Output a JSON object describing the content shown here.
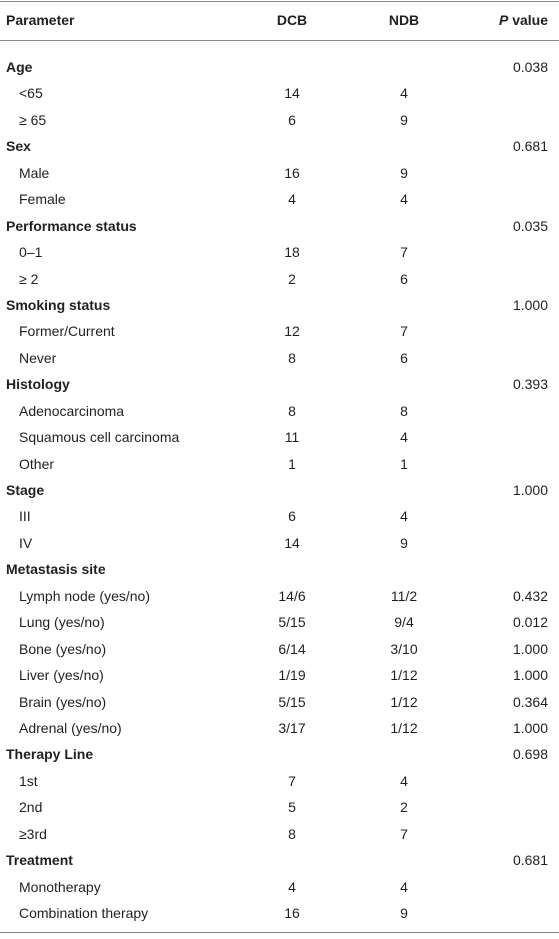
{
  "table": {
    "header": {
      "parameter": "Parameter",
      "dcb": "DCB",
      "ndb": "NDB",
      "p_italic": "P",
      "p_rest": "value"
    },
    "groups": [
      {
        "label": "Age",
        "p": "0.038",
        "rows": [
          {
            "label": "<65",
            "dcb": "14",
            "ndb": "4"
          },
          {
            "label": "≥ 65",
            "dcb": "6",
            "ndb": "9"
          }
        ]
      },
      {
        "label": "Sex",
        "p": "0.681",
        "rows": [
          {
            "label": "Male",
            "dcb": "16",
            "ndb": "9"
          },
          {
            "label": "Female",
            "dcb": "4",
            "ndb": "4"
          }
        ]
      },
      {
        "label": "Performance status",
        "p": "0.035",
        "rows": [
          {
            "label": "0–1",
            "dcb": "18",
            "ndb": "7"
          },
          {
            "label": "≥ 2",
            "dcb": "2",
            "ndb": "6"
          }
        ]
      },
      {
        "label": "Smoking status",
        "p": "1.000",
        "rows": [
          {
            "label": "Former/Current",
            "dcb": "12",
            "ndb": "7"
          },
          {
            "label": "Never",
            "dcb": "8",
            "ndb": "6"
          }
        ]
      },
      {
        "label": "Histology",
        "p": "0.393",
        "rows": [
          {
            "label": "Adenocarcinoma",
            "dcb": "8",
            "ndb": "8"
          },
          {
            "label": "Squamous cell carcinoma",
            "dcb": "11",
            "ndb": "4"
          },
          {
            "label": "Other",
            "dcb": "1",
            "ndb": "1"
          }
        ]
      },
      {
        "label": "Stage",
        "p": "1.000",
        "rows": [
          {
            "label": "III",
            "dcb": "6",
            "ndb": "4"
          },
          {
            "label": "IV",
            "dcb": "14",
            "ndb": "9"
          }
        ]
      },
      {
        "label": "Metastasis site",
        "rows": [
          {
            "label": "Lymph node (yes/no)",
            "dcb": "14/6",
            "ndb": "11/2",
            "p": "0.432"
          },
          {
            "label": "Lung (yes/no)",
            "dcb": "5/15",
            "ndb": "9/4",
            "p": "0.012"
          },
          {
            "label": "Bone (yes/no)",
            "dcb": "6/14",
            "ndb": "3/10",
            "p": "1.000"
          },
          {
            "label": "Liver (yes/no)",
            "dcb": "1/19",
            "ndb": "1/12",
            "p": "1.000"
          },
          {
            "label": "Brain (yes/no)",
            "dcb": "5/15",
            "ndb": "1/12",
            "p": "0.364"
          },
          {
            "label": "Adrenal (yes/no)",
            "dcb": "3/17",
            "ndb": "1/12",
            "p": "1.000"
          }
        ]
      },
      {
        "label": "Therapy Line",
        "p": "0.698",
        "rows": [
          {
            "label": "1st",
            "dcb": "7",
            "ndb": "4"
          },
          {
            "label": "2nd",
            "dcb": "5",
            "ndb": "2"
          },
          {
            "label": "≥3rd",
            "dcb": "8",
            "ndb": "7"
          }
        ]
      },
      {
        "label": "Treatment",
        "p": "0.681",
        "rows": [
          {
            "label": "Monotherapy",
            "dcb": "4",
            "ndb": "4"
          },
          {
            "label": "Combination therapy",
            "dcb": "16",
            "ndb": "9"
          }
        ]
      }
    ]
  }
}
